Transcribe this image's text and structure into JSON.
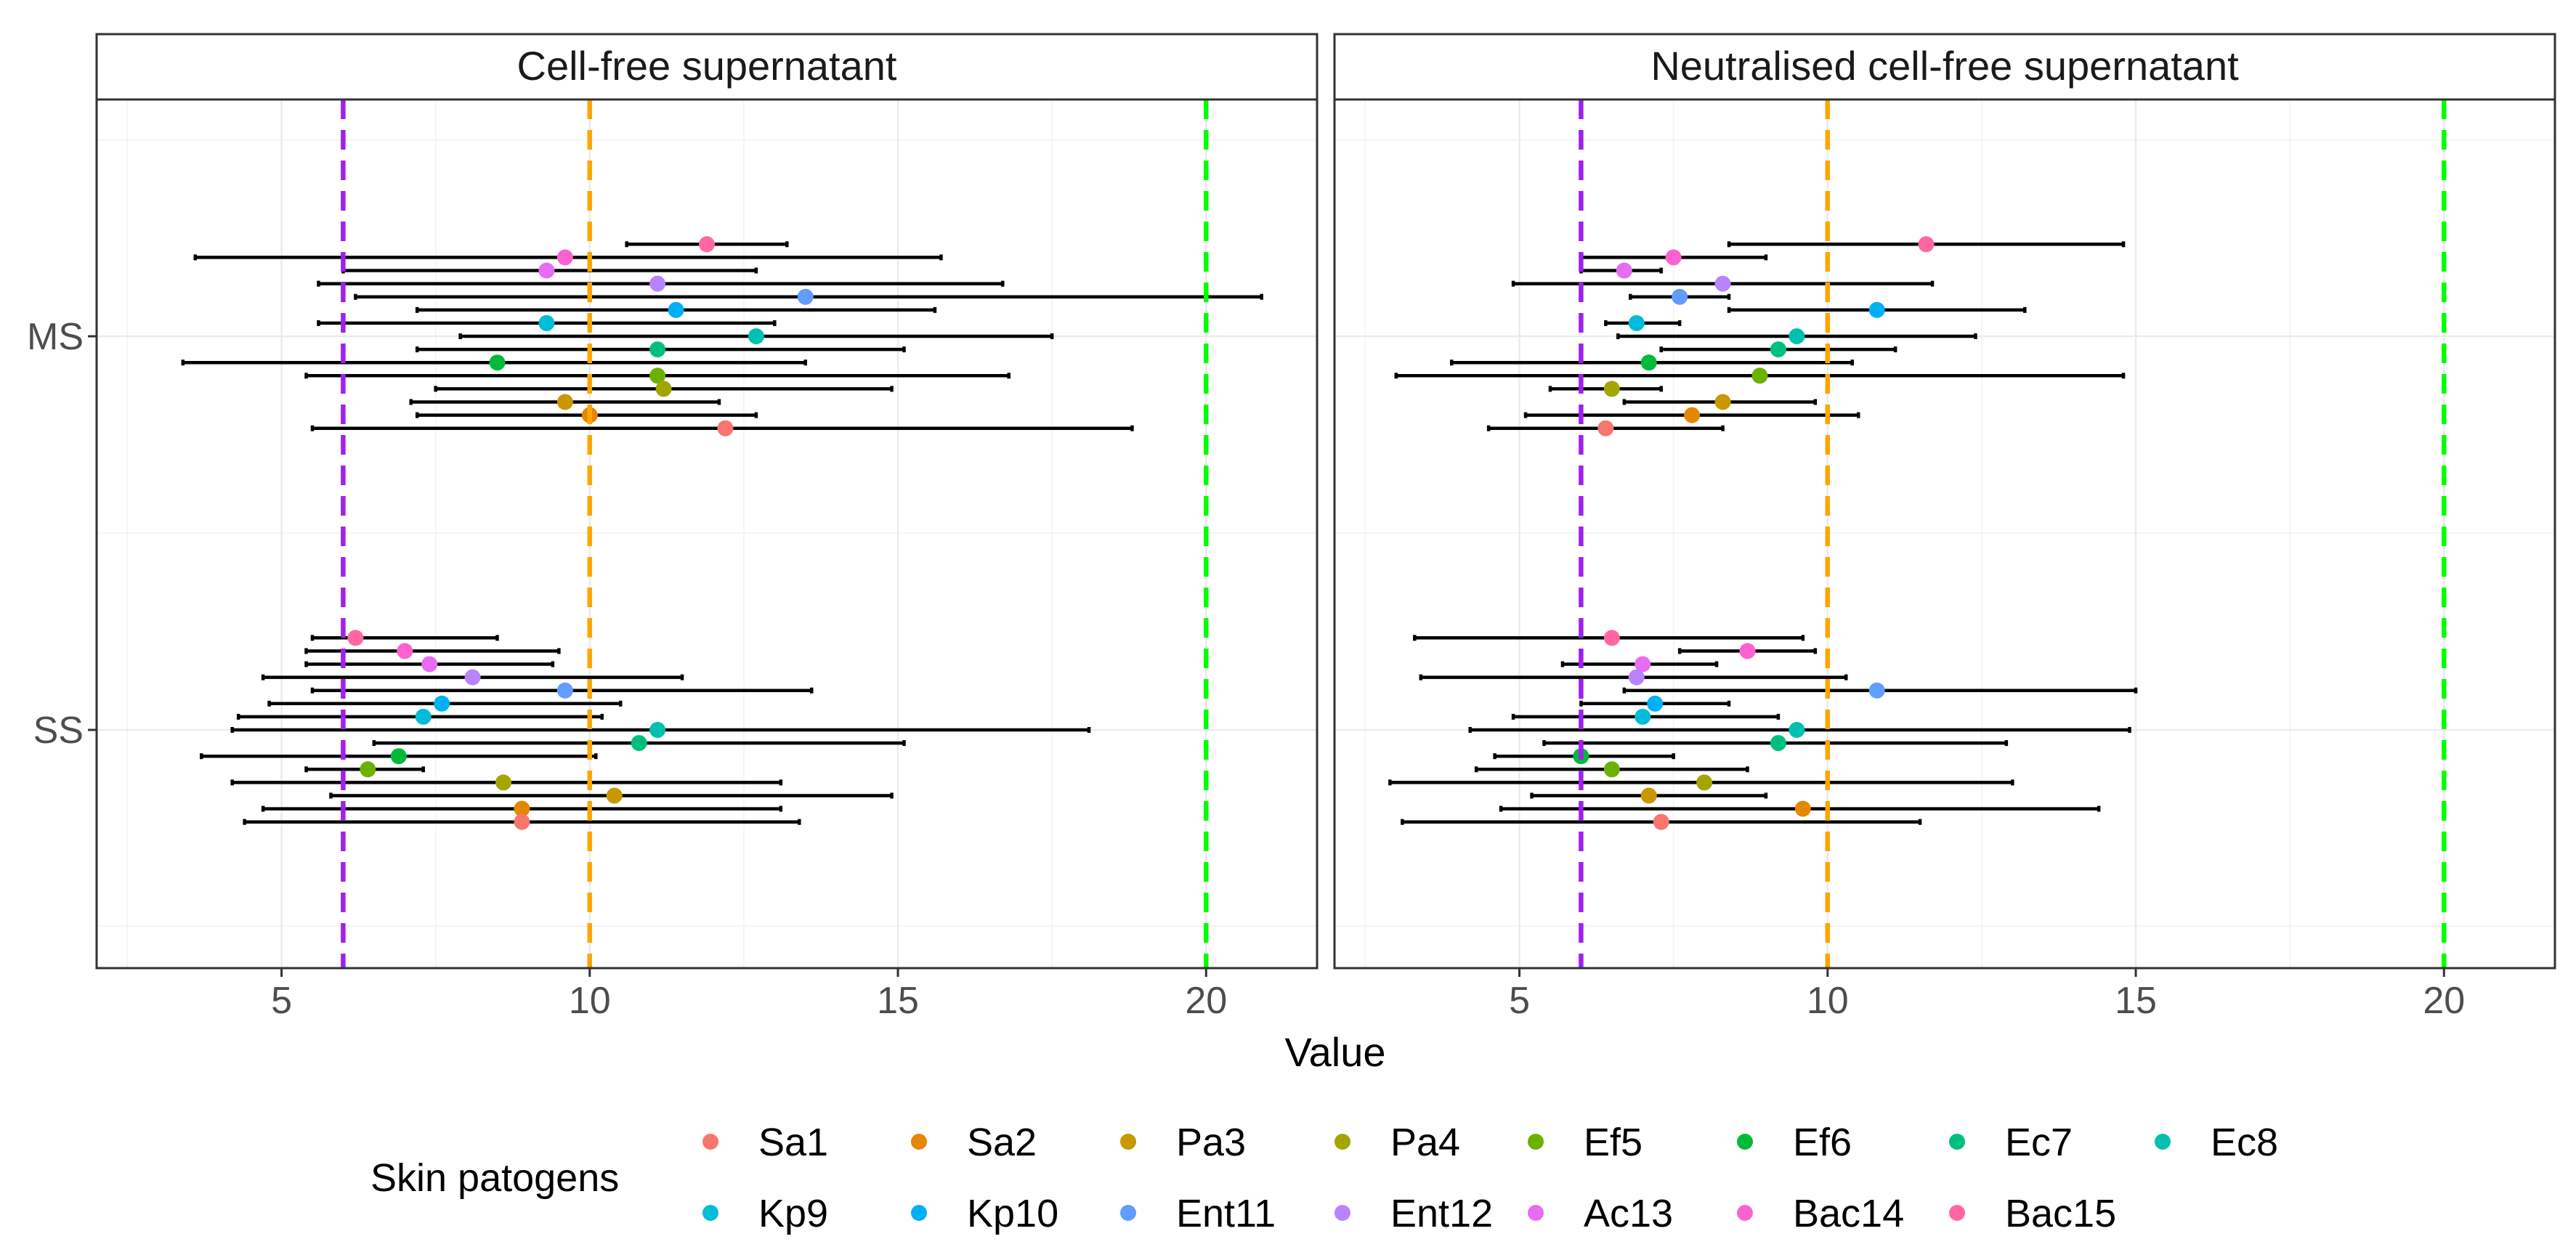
{
  "chart_data": {
    "type": "errorbar-dotplot",
    "facets": [
      "Cell-free supernatant",
      "Neutralised cell-free supernatant"
    ],
    "categories": [
      "MS",
      "SS"
    ],
    "xlabel": "Value",
    "ylabel": "",
    "xlim": [
      2,
      21.8
    ],
    "xticks": [
      5,
      10,
      15,
      20
    ],
    "reference_lines": [
      {
        "x": 6,
        "color": "#a020f0"
      },
      {
        "x": 10,
        "color": "#ffa500"
      },
      {
        "x": 20,
        "color": "#00ff00"
      }
    ],
    "legend_title": "Skin patogens",
    "series": [
      {
        "name": "Sa1",
        "color": "#F8766D"
      },
      {
        "name": "Sa2",
        "color": "#E58700"
      },
      {
        "name": "Pa3",
        "color": "#C99800"
      },
      {
        "name": "Pa4",
        "color": "#A3A500"
      },
      {
        "name": "Ef5",
        "color": "#6BB100"
      },
      {
        "name": "Ef6",
        "color": "#00BA38"
      },
      {
        "name": "Ec7",
        "color": "#00BF7D"
      },
      {
        "name": "Ec8",
        "color": "#00C0AF"
      },
      {
        "name": "Kp9",
        "color": "#00BCD8"
      },
      {
        "name": "Kp10",
        "color": "#00B0F6"
      },
      {
        "name": "Ent11",
        "color": "#619CFF"
      },
      {
        "name": "Ent12",
        "color": "#B983FF"
      },
      {
        "name": "Ac13",
        "color": "#E76BF3"
      },
      {
        "name": "Bac14",
        "color": "#FD61D1"
      },
      {
        "name": "Bac15",
        "color": "#FF67A4"
      }
    ],
    "panels": [
      {
        "facet": "Cell-free supernatant",
        "groups": [
          {
            "category": "MS",
            "points": [
              {
                "series": "Bac15",
                "value": 11.9,
                "low": 10.6,
                "high": 13.2
              },
              {
                "series": "Bac14",
                "value": 9.6,
                "low": 3.6,
                "high": 15.7
              },
              {
                "series": "Ac13",
                "value": 9.3,
                "low": 6.0,
                "high": 12.7
              },
              {
                "series": "Ent12",
                "value": 11.1,
                "low": 5.6,
                "high": 16.7
              },
              {
                "series": "Ent11",
                "value": 13.5,
                "low": 6.2,
                "high": 20.9
              },
              {
                "series": "Kp10",
                "value": 11.4,
                "low": 7.2,
                "high": 15.6
              },
              {
                "series": "Kp9",
                "value": 9.3,
                "low": 5.6,
                "high": 13.0
              },
              {
                "series": "Ec8",
                "value": 12.7,
                "low": 7.9,
                "high": 17.5
              },
              {
                "series": "Ec7",
                "value": 11.1,
                "low": 7.2,
                "high": 15.1
              },
              {
                "series": "Ef6",
                "value": 8.5,
                "low": 3.4,
                "high": 13.5
              },
              {
                "series": "Ef5",
                "value": 11.1,
                "low": 5.4,
                "high": 16.8
              },
              {
                "series": "Pa4",
                "value": 11.2,
                "low": 7.5,
                "high": 14.9
              },
              {
                "series": "Pa3",
                "value": 9.6,
                "low": 7.1,
                "high": 12.1
              },
              {
                "series": "Sa2",
                "value": 10.0,
                "low": 7.2,
                "high": 12.7
              },
              {
                "series": "Sa1",
                "value": 12.2,
                "low": 5.5,
                "high": 18.8
              }
            ]
          },
          {
            "category": "SS",
            "points": [
              {
                "series": "Bac15",
                "value": 6.2,
                "low": 5.5,
                "high": 8.5
              },
              {
                "series": "Bac14",
                "value": 7.0,
                "low": 5.4,
                "high": 9.5
              },
              {
                "series": "Ac13",
                "value": 7.4,
                "low": 5.4,
                "high": 9.4
              },
              {
                "series": "Ent12",
                "value": 8.1,
                "low": 4.7,
                "high": 11.5
              },
              {
                "series": "Ent11",
                "value": 9.6,
                "low": 5.5,
                "high": 13.6
              },
              {
                "series": "Kp10",
                "value": 7.6,
                "low": 4.8,
                "high": 10.5
              },
              {
                "series": "Kp9",
                "value": 7.3,
                "low": 4.3,
                "high": 10.2
              },
              {
                "series": "Ec8",
                "value": 11.1,
                "low": 4.2,
                "high": 18.1
              },
              {
                "series": "Ec7",
                "value": 10.8,
                "low": 6.5,
                "high": 15.1
              },
              {
                "series": "Ef6",
                "value": 6.9,
                "low": 3.7,
                "high": 10.1
              },
              {
                "series": "Ef5",
                "value": 6.4,
                "low": 5.4,
                "high": 7.3
              },
              {
                "series": "Pa4",
                "value": 8.6,
                "low": 4.2,
                "high": 13.1
              },
              {
                "series": "Pa3",
                "value": 10.4,
                "low": 5.8,
                "high": 14.9
              },
              {
                "series": "Sa2",
                "value": 8.9,
                "low": 4.7,
                "high": 13.1
              },
              {
                "series": "Sa1",
                "value": 8.9,
                "low": 4.4,
                "high": 13.4
              }
            ]
          }
        ]
      },
      {
        "facet": "Neutralised cell-free supernatant",
        "groups": [
          {
            "category": "MS",
            "points": [
              {
                "series": "Bac15",
                "value": 11.6,
                "low": 8.4,
                "high": 14.8
              },
              {
                "series": "Bac14",
                "value": 7.5,
                "low": 6.0,
                "high": 9.0
              },
              {
                "series": "Ac13",
                "value": 6.7,
                "low": 6.0,
                "high": 7.3
              },
              {
                "series": "Ent12",
                "value": 8.3,
                "low": 4.9,
                "high": 11.7
              },
              {
                "series": "Ent11",
                "value": 7.6,
                "low": 6.8,
                "high": 8.4
              },
              {
                "series": "Kp10",
                "value": 10.8,
                "low": 8.4,
                "high": 13.2
              },
              {
                "series": "Kp9",
                "value": 6.9,
                "low": 6.4,
                "high": 7.6
              },
              {
                "series": "Ec8",
                "value": 9.5,
                "low": 6.6,
                "high": 12.4
              },
              {
                "series": "Ec7",
                "value": 9.2,
                "low": 7.3,
                "high": 11.1
              },
              {
                "series": "Ef6",
                "value": 7.1,
                "low": 3.9,
                "high": 10.4
              },
              {
                "series": "Ef5",
                "value": 8.9,
                "low": 3.0,
                "high": 14.8
              },
              {
                "series": "Pa4",
                "value": 6.5,
                "low": 5.5,
                "high": 7.3
              },
              {
                "series": "Pa3",
                "value": 8.3,
                "low": 6.7,
                "high": 9.8
              },
              {
                "series": "Sa2",
                "value": 7.8,
                "low": 5.1,
                "high": 10.5
              },
              {
                "series": "Sa1",
                "value": 6.4,
                "low": 4.5,
                "high": 8.3
              }
            ]
          },
          {
            "category": "SS",
            "points": [
              {
                "series": "Bac15",
                "value": 6.5,
                "low": 3.3,
                "high": 9.6
              },
              {
                "series": "Bac14",
                "value": 8.7,
                "low": 7.6,
                "high": 9.8
              },
              {
                "series": "Ac13",
                "value": 7.0,
                "low": 5.7,
                "high": 8.2
              },
              {
                "series": "Ent12",
                "value": 6.9,
                "low": 3.4,
                "high": 10.3
              },
              {
                "series": "Ent11",
                "value": 10.8,
                "low": 6.7,
                "high": 15.0
              },
              {
                "series": "Kp10",
                "value": 7.2,
                "low": 6.0,
                "high": 8.4
              },
              {
                "series": "Kp9",
                "value": 7.0,
                "low": 4.9,
                "high": 9.2
              },
              {
                "series": "Ec8",
                "value": 9.5,
                "low": 4.2,
                "high": 14.9
              },
              {
                "series": "Ec7",
                "value": 9.2,
                "low": 5.4,
                "high": 12.9
              },
              {
                "series": "Ef6",
                "value": 6.0,
                "low": 4.6,
                "high": 7.5
              },
              {
                "series": "Ef5",
                "value": 6.5,
                "low": 4.3,
                "high": 8.7
              },
              {
                "series": "Pa4",
                "value": 8.0,
                "low": 2.9,
                "high": 13.0
              },
              {
                "series": "Pa3",
                "value": 7.1,
                "low": 5.2,
                "high": 9.0
              },
              {
                "series": "Sa2",
                "value": 9.6,
                "low": 4.7,
                "high": 14.4
              },
              {
                "series": "Sa1",
                "value": 7.3,
                "low": 3.1,
                "high": 11.5
              }
            ]
          }
        ]
      }
    ]
  }
}
